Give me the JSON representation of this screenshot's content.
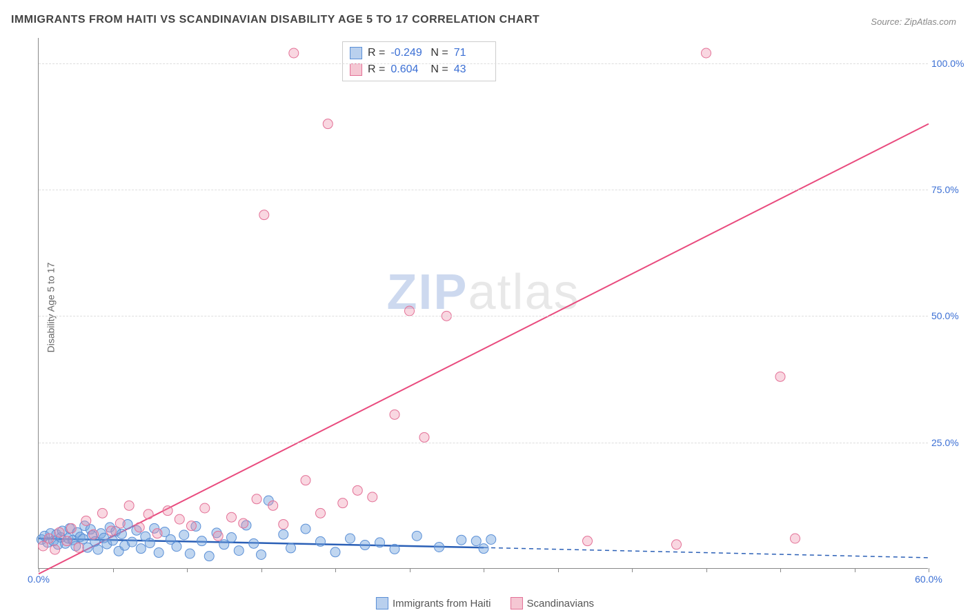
{
  "title": "IMMIGRANTS FROM HAITI VS SCANDINAVIAN DISABILITY AGE 5 TO 17 CORRELATION CHART",
  "source_label": "Source:",
  "source_name": "ZipAtlas.com",
  "y_axis_label": "Disability Age 5 to 17",
  "watermark_zip": "ZIP",
  "watermark_atlas": "atlas",
  "chart": {
    "type": "scatter",
    "xlim": [
      0,
      60
    ],
    "ylim": [
      0,
      105
    ],
    "x_ticks": [
      0,
      5,
      10,
      15,
      20,
      25,
      30,
      35,
      40,
      45,
      50,
      55,
      60
    ],
    "x_tick_labels": {
      "0": "0.0%",
      "60": "60.0%"
    },
    "y_ticks": [
      25,
      50,
      75,
      100
    ],
    "y_tick_labels": [
      "25.0%",
      "50.0%",
      "75.0%",
      "100.0%"
    ],
    "grid_color": "#dddddd",
    "background_color": "#ffffff",
    "axis_color": "#888888",
    "tick_label_color": "#3b6fd4",
    "series": [
      {
        "name": "Immigrants from Haiti",
        "color_fill": "rgba(116,164,222,0.45)",
        "color_stroke": "#5a8fd6",
        "swatch_fill": "#b9d0ee",
        "swatch_border": "#5a8fd6",
        "marker_radius": 7,
        "R": "-0.249",
        "N": "71",
        "regression": {
          "x1": 0,
          "y1": 6,
          "x2": 30,
          "y2": 4.2,
          "dash_x1": 30,
          "dash_x2": 60,
          "dash_y2": 2.2,
          "stroke": "#2a5fb6",
          "width": 2.5
        },
        "points": [
          [
            0.2,
            5.8
          ],
          [
            0.4,
            6.5
          ],
          [
            0.6,
            5.2
          ],
          [
            0.8,
            7.0
          ],
          [
            1.0,
            5.5
          ],
          [
            1.2,
            6.8
          ],
          [
            1.3,
            4.8
          ],
          [
            1.5,
            6.2
          ],
          [
            1.6,
            7.5
          ],
          [
            1.8,
            5.0
          ],
          [
            2.0,
            6.0
          ],
          [
            2.1,
            8.0
          ],
          [
            2.3,
            5.7
          ],
          [
            2.5,
            4.5
          ],
          [
            2.6,
            7.2
          ],
          [
            2.8,
            6.3
          ],
          [
            3.0,
            5.9
          ],
          [
            3.1,
            8.5
          ],
          [
            3.3,
            4.2
          ],
          [
            3.5,
            7.8
          ],
          [
            3.6,
            6.6
          ],
          [
            3.8,
            5.4
          ],
          [
            4.0,
            3.8
          ],
          [
            4.2,
            7.0
          ],
          [
            4.4,
            6.1
          ],
          [
            4.6,
            4.9
          ],
          [
            4.8,
            8.2
          ],
          [
            5.0,
            5.6
          ],
          [
            5.2,
            7.4
          ],
          [
            5.4,
            3.5
          ],
          [
            5.6,
            6.9
          ],
          [
            5.8,
            4.6
          ],
          [
            6.0,
            8.8
          ],
          [
            6.3,
            5.3
          ],
          [
            6.6,
            7.6
          ],
          [
            6.9,
            4.0
          ],
          [
            7.2,
            6.4
          ],
          [
            7.5,
            5.1
          ],
          [
            7.8,
            8.0
          ],
          [
            8.1,
            3.2
          ],
          [
            8.5,
            7.3
          ],
          [
            8.9,
            5.8
          ],
          [
            9.3,
            4.4
          ],
          [
            9.8,
            6.7
          ],
          [
            10.2,
            3.0
          ],
          [
            10.6,
            8.4
          ],
          [
            11.0,
            5.5
          ],
          [
            11.5,
            2.5
          ],
          [
            12.0,
            7.1
          ],
          [
            12.5,
            4.8
          ],
          [
            13.0,
            6.2
          ],
          [
            13.5,
            3.6
          ],
          [
            14.0,
            8.6
          ],
          [
            14.5,
            5.0
          ],
          [
            15.0,
            2.8
          ],
          [
            15.5,
            13.5
          ],
          [
            16.5,
            6.8
          ],
          [
            17.0,
            4.1
          ],
          [
            18.0,
            7.9
          ],
          [
            19.0,
            5.4
          ],
          [
            20.0,
            3.3
          ],
          [
            21.0,
            6.0
          ],
          [
            22.0,
            4.7
          ],
          [
            23.0,
            5.2
          ],
          [
            24.0,
            3.9
          ],
          [
            25.5,
            6.5
          ],
          [
            27.0,
            4.3
          ],
          [
            28.5,
            5.7
          ],
          [
            29.5,
            5.5
          ],
          [
            30.0,
            4.0
          ],
          [
            30.5,
            5.8
          ]
        ]
      },
      {
        "name": "Scandinavians",
        "color_fill": "rgba(237,140,170,0.35)",
        "color_stroke": "#e37096",
        "swatch_fill": "#f5c7d3",
        "swatch_border": "#e37096",
        "marker_radius": 7,
        "R": "0.604",
        "N": "43",
        "regression": {
          "x1": 0,
          "y1": -1,
          "x2": 60,
          "y2": 88,
          "stroke": "#e94b7e",
          "width": 2
        },
        "points": [
          [
            0.3,
            4.5
          ],
          [
            0.7,
            6.0
          ],
          [
            1.1,
            3.8
          ],
          [
            1.4,
            7.2
          ],
          [
            1.9,
            5.5
          ],
          [
            2.2,
            8.0
          ],
          [
            2.7,
            4.2
          ],
          [
            3.2,
            9.5
          ],
          [
            3.7,
            6.8
          ],
          [
            4.3,
            11.0
          ],
          [
            4.9,
            7.5
          ],
          [
            5.5,
            9.0
          ],
          [
            6.1,
            12.5
          ],
          [
            6.8,
            8.2
          ],
          [
            7.4,
            10.8
          ],
          [
            8.0,
            7.0
          ],
          [
            8.7,
            11.5
          ],
          [
            9.5,
            9.8
          ],
          [
            10.3,
            8.5
          ],
          [
            11.2,
            12.0
          ],
          [
            12.1,
            6.5
          ],
          [
            13.0,
            10.2
          ],
          [
            13.8,
            9.0
          ],
          [
            14.7,
            13.8
          ],
          [
            15.2,
            70.0
          ],
          [
            15.8,
            12.5
          ],
          [
            16.5,
            8.8
          ],
          [
            17.2,
            102.0
          ],
          [
            18.0,
            17.5
          ],
          [
            19.0,
            11.0
          ],
          [
            19.5,
            88.0
          ],
          [
            20.5,
            13.0
          ],
          [
            21.5,
            15.5
          ],
          [
            22.5,
            14.2
          ],
          [
            24.0,
            30.5
          ],
          [
            25.0,
            51.0
          ],
          [
            26.0,
            26.0
          ],
          [
            27.5,
            50.0
          ],
          [
            45.0,
            102.0
          ],
          [
            50.0,
            38.0
          ],
          [
            51.0,
            6.0
          ],
          [
            37.0,
            5.5
          ],
          [
            43.0,
            4.8
          ]
        ]
      }
    ]
  },
  "stats_box": {
    "R_label": "R =",
    "N_label": "N ="
  },
  "legend": {
    "items": [
      "Immigrants from Haiti",
      "Scandinavians"
    ]
  }
}
